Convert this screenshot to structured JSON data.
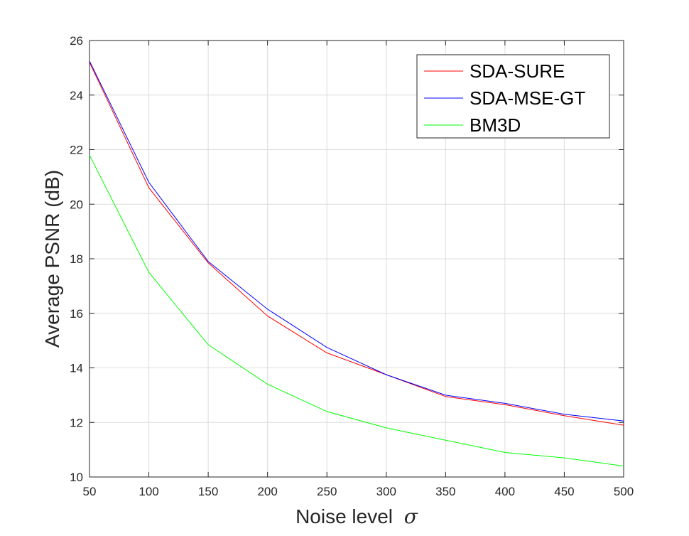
{
  "chart_data": {
    "type": "line",
    "title": "",
    "xlabel": "Noise level",
    "xlabel_symbol": "σ",
    "ylabel": "Average PSNR (dB)",
    "x": [
      50,
      100,
      150,
      200,
      250,
      300,
      350,
      400,
      450,
      500
    ],
    "xlim": [
      50,
      500
    ],
    "ylim": [
      10,
      26
    ],
    "xticks": [
      50,
      100,
      150,
      200,
      250,
      300,
      350,
      400,
      450,
      500
    ],
    "yticks": [
      10,
      12,
      14,
      16,
      18,
      20,
      22,
      24,
      26
    ],
    "grid": true,
    "legend_position": "top-right",
    "series": [
      {
        "name": "SDA-SURE",
        "color": "#ff0000",
        "values": [
          25.2,
          20.6,
          17.85,
          15.9,
          14.55,
          13.75,
          12.95,
          12.65,
          12.25,
          11.9
        ]
      },
      {
        "name": "SDA-MSE-GT",
        "color": "#0000ff",
        "values": [
          25.25,
          20.8,
          17.9,
          16.15,
          14.75,
          13.75,
          13.0,
          12.7,
          12.3,
          12.05
        ]
      },
      {
        "name": "BM3D",
        "color": "#00ff00",
        "values": [
          21.8,
          17.5,
          14.85,
          13.4,
          12.4,
          11.8,
          11.35,
          10.9,
          10.7,
          10.4
        ]
      }
    ]
  }
}
